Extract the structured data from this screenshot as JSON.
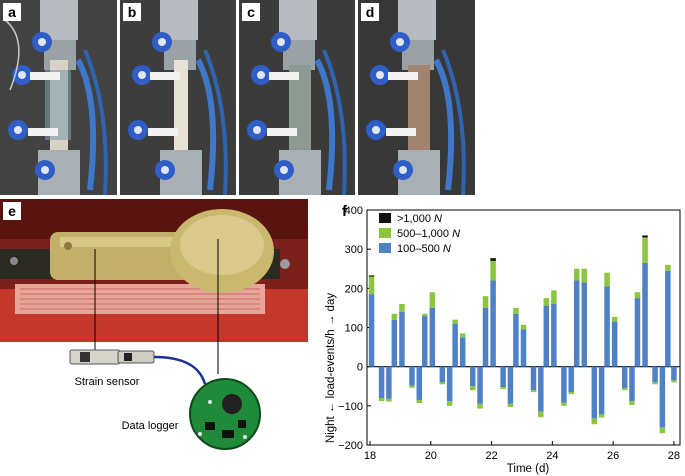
{
  "panels": {
    "a": "a",
    "b": "b",
    "c": "c",
    "d": "d",
    "e": "e",
    "f": "f"
  },
  "photo_e": {
    "strain_sensor_label": "Strain sensor",
    "data_logger_label": "Data logger"
  },
  "chart_data": {
    "type": "bar",
    "xlabel": "Time (d)",
    "ylabel": "Night ← load-events/h → day",
    "xlim": [
      17.9,
      28.2
    ],
    "ylim": [
      -200,
      400
    ],
    "xticks": [
      18,
      20,
      22,
      24,
      26,
      28
    ],
    "yticks": [
      -200,
      -100,
      0,
      100,
      200,
      300,
      400
    ],
    "stack_order": [
      "100–500 N",
      "500–1,000 N",
      ">1,000 N"
    ],
    "legend": {
      "position": "top-left",
      "entries": [
        {
          "label": ">1,000 ",
          "unit": "N",
          "color": "#111111"
        },
        {
          "label": "500–1,000 ",
          "unit": "N",
          "color": "#8cc63f"
        },
        {
          "label": "100–500 ",
          "unit": "N",
          "color": "#4f81c7"
        }
      ]
    },
    "series": [
      {
        "name": "100–500 N",
        "day_x": [
          18.05,
          18.8,
          19.05,
          19.8,
          20.05,
          20.8,
          21.05,
          21.8,
          22.05,
          22.8,
          23.05,
          23.8,
          24.05,
          24.8,
          25.05,
          25.8,
          26.05,
          26.8,
          27.05,
          27.8
        ],
        "day": [
          185,
          120,
          140,
          130,
          150,
          110,
          75,
          150,
          220,
          135,
          95,
          155,
          160,
          220,
          215,
          205,
          115,
          175,
          265,
          245
        ],
        "night_x": [
          18.38,
          18.62,
          19.38,
          19.62,
          20.38,
          20.62,
          21.38,
          21.62,
          22.38,
          22.62,
          23.38,
          23.62,
          24.38,
          24.62,
          25.38,
          25.62,
          26.38,
          26.62,
          27.38,
          27.62,
          28.0
        ],
        "night": [
          -80,
          -82,
          -48,
          -85,
          -40,
          -88,
          -50,
          -95,
          -52,
          -95,
          -60,
          -115,
          -92,
          -65,
          -132,
          -122,
          -55,
          -88,
          -40,
          -155,
          -35
        ]
      },
      {
        "name": "500–1,000 N",
        "day": [
          45,
          15,
          20,
          5,
          40,
          10,
          10,
          30,
          50,
          15,
          12,
          20,
          35,
          30,
          35,
          35,
          12,
          15,
          65,
          15
        ],
        "night": [
          -8,
          -7,
          -6,
          -8,
          -5,
          -12,
          -10,
          -12,
          -5,
          -8,
          -5,
          -14,
          -8,
          -5,
          -15,
          -8,
          -5,
          -10,
          -5,
          -15,
          -5
        ]
      },
      {
        "name": ">1,000 N",
        "day": [
          3,
          0,
          0,
          0,
          0,
          0,
          0,
          0,
          7,
          0,
          0,
          0,
          0,
          0,
          0,
          0,
          0,
          0,
          5,
          0
        ],
        "night": [
          0,
          0,
          0,
          0,
          0,
          0,
          0,
          0,
          0,
          0,
          0,
          0,
          0,
          0,
          0,
          0,
          0,
          0,
          0,
          0,
          0
        ]
      }
    ]
  }
}
